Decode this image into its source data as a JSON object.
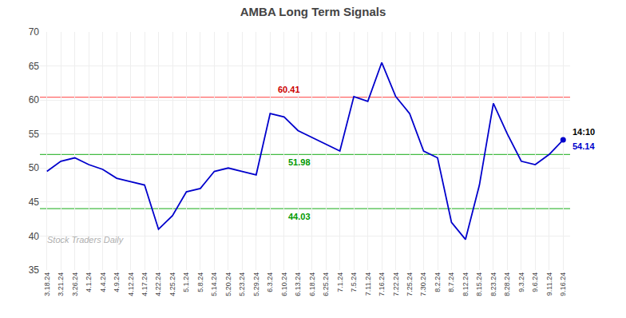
{
  "chart_data": {
    "type": "line",
    "title": "AMBA Long Term Signals",
    "categories": [
      "3.18.24",
      "3.21.24",
      "3.26.24",
      "4.1.24",
      "4.4.24",
      "4.9.24",
      "4.12.24",
      "4.17.24",
      "4.22.24",
      "4.25.24",
      "5.1.24",
      "5.8.24",
      "5.14.24",
      "5.20.24",
      "5.23.24",
      "5.29.24",
      "6.3.24",
      "6.10.24",
      "6.13.24",
      "6.18.24",
      "6.25.24",
      "7.1.24",
      "7.5.24",
      "7.11.24",
      "7.16.24",
      "7.22.24",
      "7.25.24",
      "7.30.24",
      "8.2.24",
      "8.7.24",
      "8.12.24",
      "8.15.24",
      "8.23.24",
      "8.28.24",
      "9.3.24",
      "9.6.24",
      "9.11.24",
      "9.16.24"
    ],
    "values": [
      49.5,
      51.0,
      51.5,
      50.5,
      49.8,
      48.5,
      48.0,
      47.5,
      41.0,
      43.0,
      46.5,
      47.0,
      49.5,
      50.0,
      49.5,
      49.0,
      58.0,
      57.5,
      55.5,
      54.5,
      53.5,
      52.5,
      60.5,
      59.8,
      65.5,
      60.5,
      58.0,
      52.5,
      51.5,
      42.0,
      39.5,
      47.5,
      59.5,
      55.0,
      51.0,
      50.5,
      52.0,
      54.14
    ],
    "color": "#0000cc",
    "reference_lines": [
      {
        "value": 60.41,
        "color": "#ff6666",
        "label_color": "#cc0000"
      },
      {
        "value": 51.98,
        "color": "#44bb44",
        "label_color": "#009900"
      },
      {
        "value": 44.03,
        "color": "#44bb44",
        "label_color": "#009900"
      }
    ],
    "end_annotations": [
      {
        "text": "14:10",
        "color": "#000000"
      },
      {
        "text": "54.14",
        "color": "#0000cc"
      }
    ],
    "watermark": "Stock Traders Daily",
    "ylim": [
      35,
      70
    ],
    "yticks": [
      35,
      40,
      45,
      50,
      55,
      60,
      65,
      70
    ],
    "grid": true
  }
}
